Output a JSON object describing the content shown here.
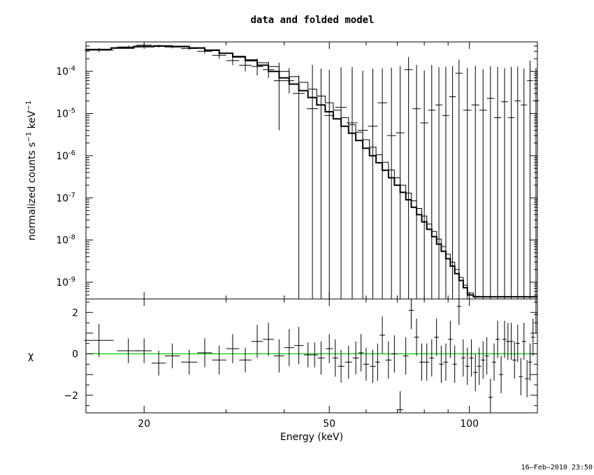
{
  "chart_data": [
    {
      "panel": "top",
      "type": "line",
      "title": "data and folded model",
      "ylabel": "normalized counts s^-1 keV^-1",
      "yscale": "log",
      "xscale": "log",
      "xlim": [
        15,
        140
      ],
      "ylim": [
        4e-10,
        0.0005
      ],
      "y_ticks": [
        {
          "value": 0.0001,
          "mantissa": "10",
          "exp": "-4"
        },
        {
          "value": 1e-05,
          "mantissa": "10",
          "exp": "-5"
        },
        {
          "value": 1e-06,
          "mantissa": "10",
          "exp": "-6"
        },
        {
          "value": 1e-07,
          "mantissa": "10",
          "exp": "-7"
        },
        {
          "value": 1e-08,
          "mantissa": "10",
          "exp": "-8"
        },
        {
          "value": 1e-09,
          "mantissa": "10",
          "exp": "-9"
        }
      ],
      "series": [
        {
          "kind": "data-crosses",
          "x": [
            16,
            18.5,
            20,
            21.5,
            23,
            25,
            27,
            29,
            31,
            33,
            35,
            37,
            39,
            41,
            43,
            46,
            48,
            50,
            53,
            56,
            59,
            62,
            65,
            68,
            71,
            74,
            77,
            80,
            83,
            86,
            89,
            92,
            95,
            99,
            103,
            107,
            111,
            115,
            119,
            123,
            127,
            131,
            135,
            139
          ],
          "y": [
            0.00032,
            0.00038,
            0.00042,
            0.0004,
            0.00038,
            0.00035,
            0.0003,
            0.00024,
            0.00018,
            0.00014,
            0.00013,
            0.00011,
            6e-05,
            6e-05,
            3e-05,
            1.3e-05,
            1.6e-05,
            9e-06,
            1.4e-05,
            6e-06,
            4e-06,
            5e-06,
            1.8e-05,
            3e-06,
            3.5e-06,
            0.00011,
            1.3e-05,
            6e-06,
            1.2e-05,
            1.6e-05,
            9e-06,
            2.5e-05,
            9e-05,
            1.2e-05,
            1.6e-05,
            1.2e-05,
            2.3e-05,
            8e-06,
            1.9e-05,
            8e-06,
            2e-05,
            1.6e-05,
            6e-05,
            2e-05
          ],
          "yerr_lo": [
            3.5e-05,
            3e-05,
            3e-05,
            3e-05,
            3e-05,
            3e-05,
            3.5e-05,
            4e-05,
            4e-05,
            4e-05,
            5e-05,
            4e-05,
            5.6e-05,
            3e-05,
            3e-05,
            1.3e-05,
            1.6e-05,
            9e-06,
            1.4e-05,
            6e-06,
            4e-06,
            5e-06,
            1.8e-05,
            3e-06,
            3.5e-06,
            0.00011,
            1.3e-05,
            6e-06,
            1.2e-05,
            1.6e-05,
            9e-06,
            2.5e-05,
            9e-05,
            1.2e-05,
            1.6e-05,
            1.2e-05,
            2.3e-05,
            8e-06,
            1.9e-05,
            8e-06,
            2e-05,
            1.6e-05,
            6e-05,
            2e-05
          ],
          "yerr_hi": [
            4e-05,
            3e-05,
            3e-05,
            3e-05,
            3e-05,
            3e-05,
            4e-05,
            5e-05,
            6e-05,
            6e-05,
            7e-05,
            6e-05,
            0.0001,
            6e-05,
            5e-05,
            0.00013,
            0.0001,
            0.0001,
            0.00011,
            0.00012,
            0.0001,
            0.00011,
            0.0001,
            0.00012,
            0.00013,
            0.00011,
            0.00013,
            0.0001,
            0.00013,
            0.00011,
            0.00012,
            0.00011,
            0.0001,
            0.00011,
            0.00012,
            0.0001,
            0.00011,
            0.00012,
            0.0001,
            0.00012,
            0.00011,
            0.0001,
            0.00012,
            0.0001
          ]
        },
        {
          "kind": "model-step",
          "x": [
            15,
            17,
            19,
            21,
            23,
            25,
            27,
            29,
            31,
            33,
            35,
            37,
            39,
            41,
            43,
            45,
            47,
            49,
            51,
            53,
            55,
            57,
            59,
            61,
            63,
            65,
            67,
            69,
            71,
            73,
            75,
            77,
            79,
            81,
            83,
            85,
            87,
            89,
            91,
            93,
            95,
            97,
            99,
            102,
            105,
            108,
            111,
            114,
            117,
            120,
            123,
            126,
            129,
            132,
            135,
            138,
            140
          ],
          "y": [
            0.00033,
            0.00036,
            0.00039,
            0.0004,
            0.00039,
            0.00036,
            0.00032,
            0.00027,
            0.00022,
            0.00018,
            0.00014,
            0.0001,
            7e-05,
            5e-05,
            3.5e-05,
            2.4e-05,
            1.6e-05,
            1.1e-05,
            7.5e-06,
            5e-06,
            3.4e-06,
            2.3e-06,
            1.5e-06,
            1e-06,
            6.8e-07,
            4.5e-07,
            3e-07,
            2e-07,
            1.35e-07,
            9e-08,
            6e-08,
            4e-08,
            2.7e-08,
            1.8e-08,
            1.2e-08,
            8e-09,
            5.4e-09,
            3.6e-09,
            2.4e-09,
            1.6e-09,
            1.1e-09,
            7.4e-10,
            5e-10,
            4.5e-10,
            4.5e-10,
            4.5e-10,
            4.5e-10,
            4.5e-10,
            4.5e-10,
            4.5e-10,
            4.5e-10,
            4.5e-10,
            4.5e-10,
            4.5e-10,
            4.5e-10,
            4.5e-10,
            4.5e-10
          ]
        },
        {
          "kind": "model-step-thin",
          "x": [
            15,
            17,
            19,
            21,
            23,
            25,
            27,
            29,
            31,
            33,
            35,
            37,
            39,
            41,
            43,
            45,
            47,
            49,
            51,
            53,
            55,
            57,
            59,
            61,
            63,
            65,
            67,
            69,
            71,
            73,
            75,
            77,
            79,
            81,
            83,
            85,
            87,
            89,
            91,
            93,
            95,
            97,
            99,
            102,
            105,
            108,
            111,
            114,
            117,
            120,
            123,
            126,
            129,
            132,
            135,
            138,
            140
          ],
          "y": [
            0.00032,
            0.00035,
            0.00038,
            0.00039,
            0.00038,
            0.00035,
            0.00031,
            0.00027,
            0.00023,
            0.00019,
            0.00016,
            0.00013,
            0.0001,
            7.5e-05,
            5.5e-05,
            3.8e-05,
            2.6e-05,
            1.8e-05,
            1.2e-05,
            8e-06,
            5.4e-06,
            3.6e-06,
            2.4e-06,
            1.6e-06,
            1.05e-06,
            7e-07,
            4.6e-07,
            3e-07,
            2e-07,
            1.3e-07,
            8.5e-08,
            5.6e-08,
            3.7e-08,
            2.4e-08,
            1.6e-08,
            1.05e-08,
            7e-09,
            4.6e-09,
            3e-09,
            2e-09,
            1.3e-09,
            8.5e-10,
            5.6e-10,
            4.6e-10,
            4.5e-10,
            4.5e-10,
            4.5e-10,
            4.5e-10,
            4.5e-10,
            4.5e-10,
            4.5e-10,
            4.5e-10,
            4.5e-10,
            4.5e-10,
            4.5e-10,
            4.5e-10,
            4.5e-10
          ]
        }
      ]
    },
    {
      "panel": "bottom",
      "type": "scatter",
      "xlabel": "Energy (keV)",
      "ylabel": "χ",
      "xscale": "log",
      "xlim": [
        15,
        140
      ],
      "ylim": [
        -2.85,
        2.65
      ],
      "x_ticks": [
        {
          "value": 20,
          "label": "20"
        },
        {
          "value": 50,
          "label": "50"
        },
        {
          "value": 100,
          "label": "100"
        }
      ],
      "y_ticks": [
        {
          "value": 2,
          "label": "2"
        },
        {
          "value": 0,
          "label": "0"
        },
        {
          "value": -2,
          "label": "−2"
        }
      ],
      "zero_line": {
        "value": 0,
        "color": "#00cc00"
      },
      "series": [
        {
          "kind": "residual-crosses",
          "x": [
            16,
            18.5,
            20,
            21.5,
            23,
            25,
            27,
            29,
            31,
            33,
            35,
            37,
            39,
            41,
            43,
            45,
            46.5,
            48,
            50,
            51.5,
            53,
            55,
            57,
            58.5,
            60,
            62,
            63.5,
            65,
            67,
            69,
            71,
            73,
            75,
            77,
            79,
            81,
            83,
            85,
            87,
            89,
            91,
            93,
            95,
            97,
            99,
            101,
            103,
            105,
            107,
            109,
            111,
            113,
            115,
            117,
            119,
            121,
            123,
            125,
            127,
            129,
            131,
            133,
            135,
            137,
            139
          ],
          "y": [
            0.65,
            0.15,
            0.15,
            -0.45,
            -0.1,
            -0.4,
            0.05,
            -0.3,
            0.25,
            -0.3,
            0.6,
            0.7,
            -0.1,
            0.3,
            0.4,
            -0.05,
            -0.05,
            -0.2,
            0.25,
            -0.2,
            -0.6,
            -0.4,
            -0.2,
            0.05,
            -0.5,
            -0.6,
            -0.4,
            0.9,
            -0.3,
            0.0,
            -2.7,
            -0.1,
            2.1,
            0.8,
            -0.4,
            -0.4,
            -0.2,
            0.8,
            -0.5,
            -0.4,
            0.7,
            -0.5,
            2.3,
            -0.2,
            -0.6,
            -0.2,
            -0.9,
            -0.6,
            -0.3,
            -0.1,
            -2.1,
            -0.4,
            0.7,
            -1.0,
            0.7,
            0.6,
            0.6,
            -0.3,
            0.5,
            -1.1,
            0.6,
            -1.2,
            -0.4,
            0.8,
            1.9
          ],
          "err": [
            0.8,
            0.6,
            0.6,
            0.6,
            0.6,
            0.6,
            0.7,
            0.7,
            0.7,
            0.6,
            0.8,
            0.8,
            0.8,
            0.9,
            0.9,
            0.6,
            0.6,
            0.8,
            0.7,
            0.9,
            0.8,
            0.8,
            0.8,
            0.9,
            0.8,
            0.8,
            0.9,
            0.9,
            0.9,
            0.9,
            0.9,
            0.9,
            0.9,
            0.9,
            0.9,
            0.9,
            0.9,
            0.9,
            0.9,
            0.9,
            0.9,
            0.9,
            0.9,
            0.9,
            0.9,
            0.9,
            0.9,
            0.9,
            0.9,
            0.9,
            0.9,
            0.9,
            0.9,
            0.9,
            0.9,
            0.9,
            0.9,
            0.9,
            0.9,
            0.9,
            0.9,
            0.9,
            0.9,
            0.9,
            0.9
          ]
        }
      ]
    }
  ],
  "stamp": "16–Feb–2010 23:50"
}
